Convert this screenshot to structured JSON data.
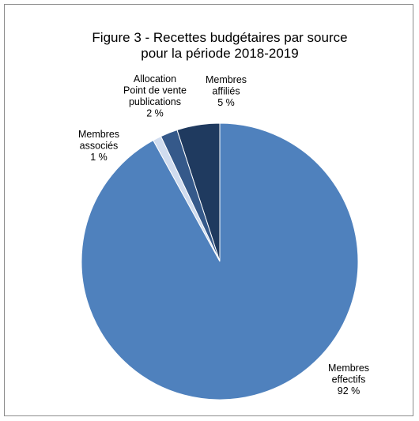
{
  "chart_data": {
    "type": "pie",
    "title": "Figure 3 - Recettes budgétaires par source",
    "subtitle": "pour la période 2018-2019",
    "slices": [
      {
        "label": [
          "Membres",
          "affiliés"
        ],
        "value": 5,
        "value_label": "5 %",
        "color": "#1f3a5f"
      },
      {
        "label": [
          "Allocation",
          "Point de vente",
          "publications"
        ],
        "value": 2,
        "value_label": "2 %",
        "color": "#35598a"
      },
      {
        "label": [
          "Membres",
          "associés"
        ],
        "value": 1,
        "value_label": "1 %",
        "color": "#d0dcef"
      },
      {
        "label": [
          "Membres",
          "effectifs"
        ],
        "value": 92,
        "value_label": "92 %",
        "color": "#4f81bd"
      }
    ],
    "start_angle_deg": 0,
    "direction": "counterclockwise",
    "legend": "none"
  }
}
